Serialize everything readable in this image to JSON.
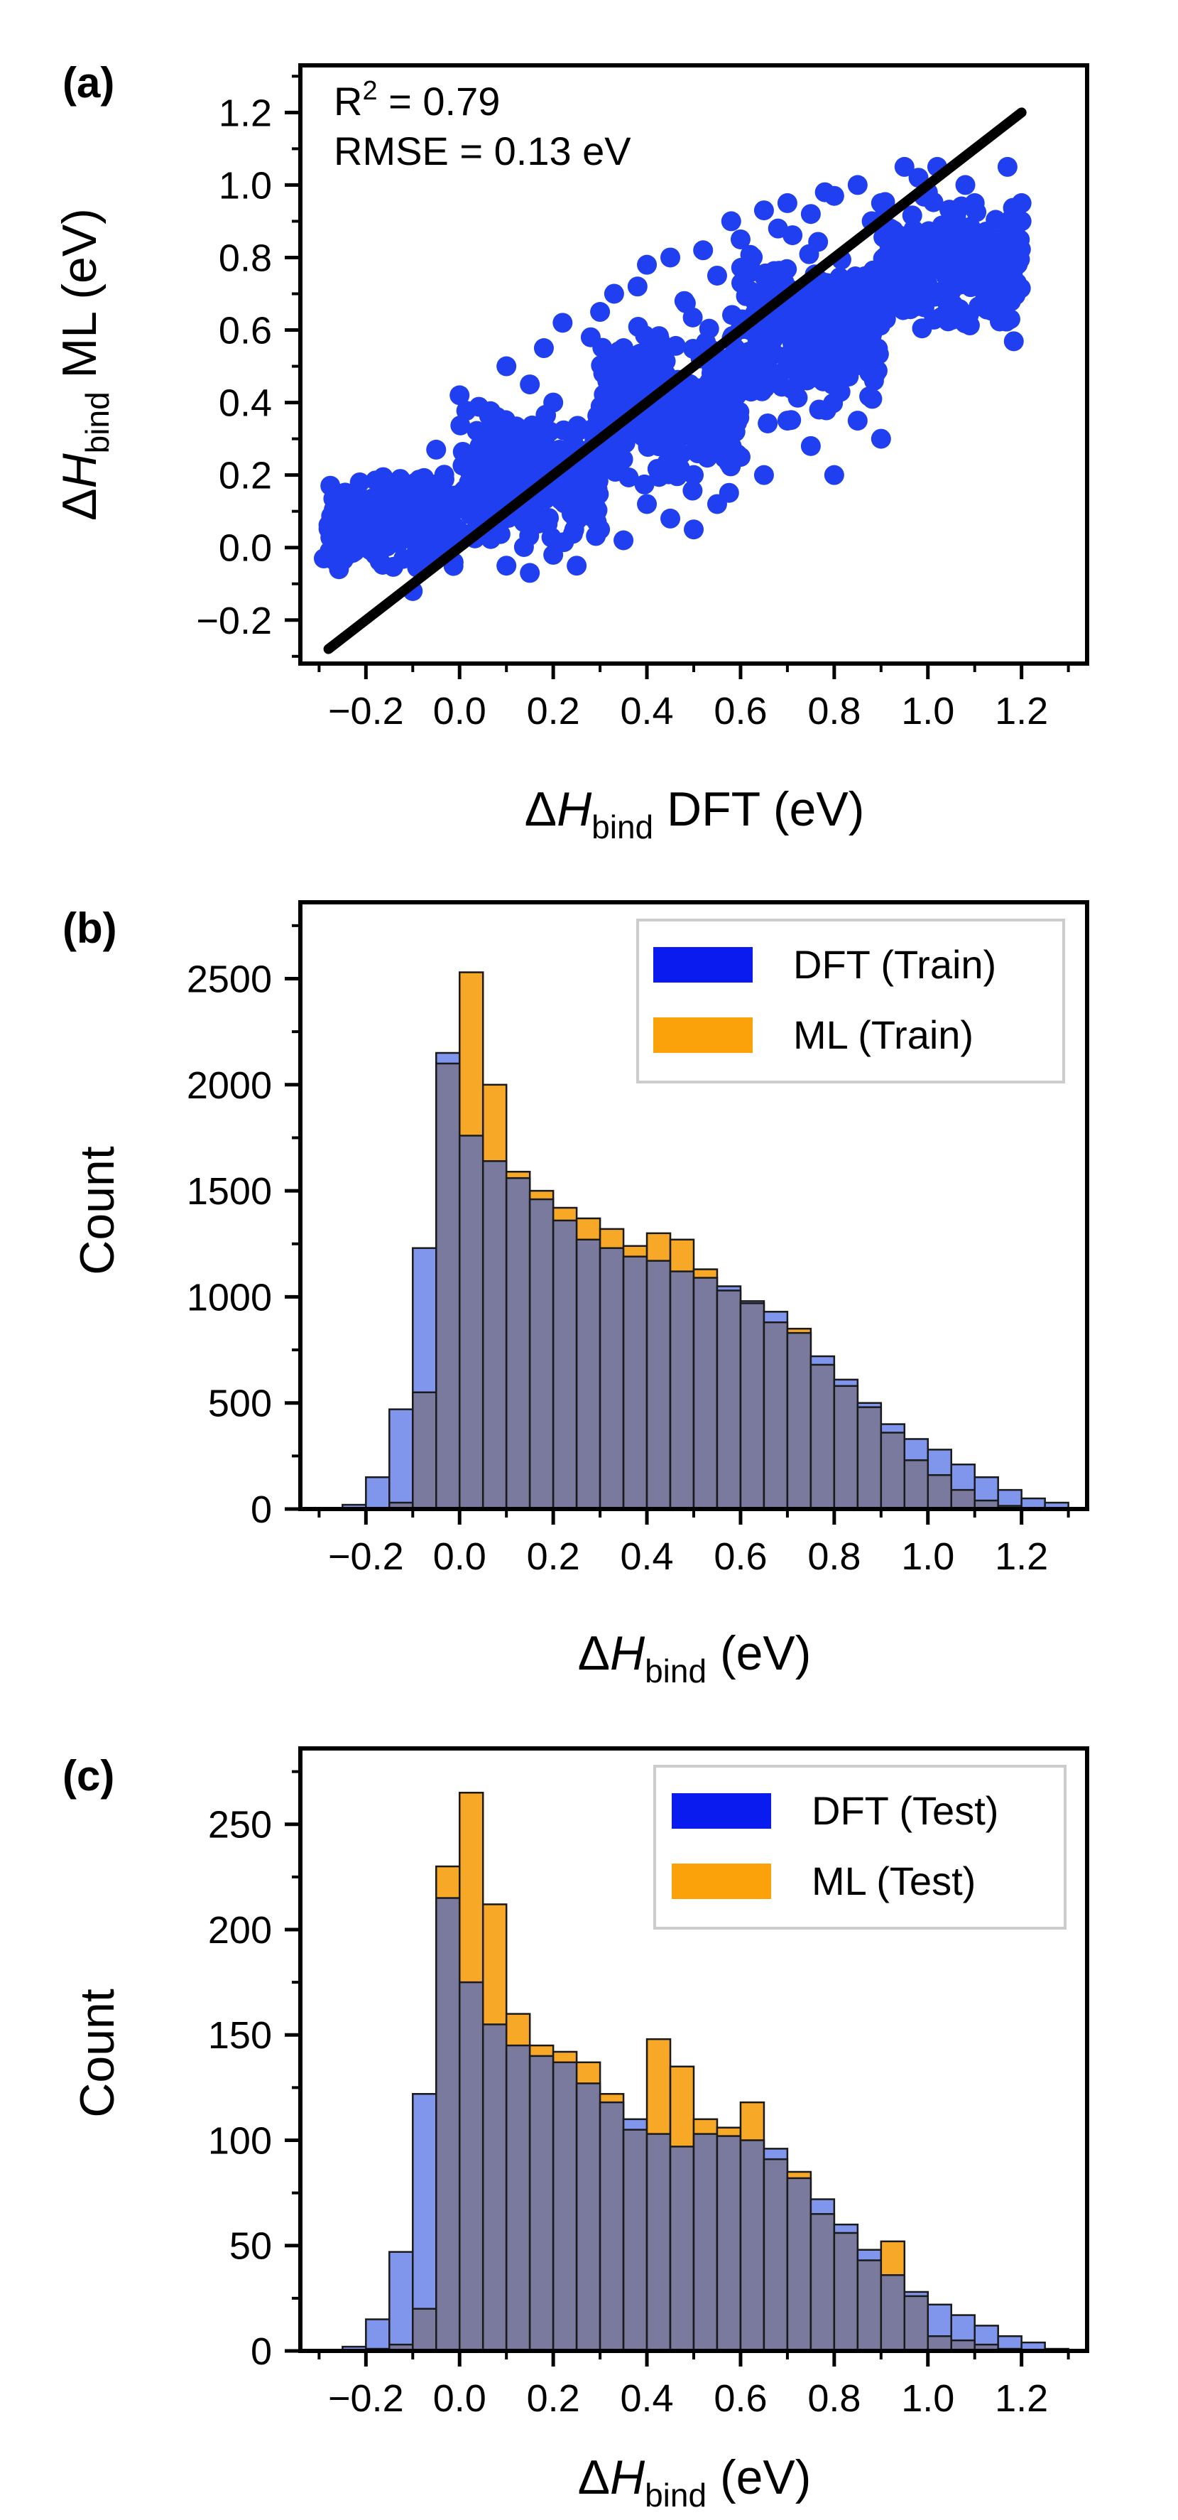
{
  "chart_data": [
    {
      "id": "a",
      "panel_label": "(a)",
      "type": "scatter",
      "xlabel": {
        "prefix": "Δ",
        "var": "H",
        "sub": "bind",
        "suffix": " DFT (eV)"
      },
      "ylabel": {
        "prefix": "Δ",
        "var": "H",
        "sub": "bind",
        "suffix": " ML (eV)"
      },
      "xlim": [
        -0.34,
        1.34
      ],
      "ylim": [
        -0.32,
        1.33
      ],
      "xticks": [
        -0.2,
        0.0,
        0.2,
        0.4,
        0.6,
        0.8,
        1.0,
        1.2
      ],
      "xtick_labels": [
        "−0.2",
        "0.0",
        "0.2",
        "0.4",
        "0.6",
        "0.8",
        "1.0",
        "1.2"
      ],
      "yticks": [
        -0.2,
        0.0,
        0.2,
        0.4,
        0.6,
        0.8,
        1.0,
        1.2
      ],
      "ytick_labels": [
        "−0.2",
        "0.0",
        "0.2",
        "0.4",
        "0.6",
        "0.8",
        "1.0",
        "1.2"
      ],
      "annotation": {
        "r2_base": "R",
        "r2_sup": "2",
        "r2_rest": " = 0.79",
        "rmse": "RMSE = 0.13 eV"
      },
      "point_color": "#1f3ff0",
      "parity_line": {
        "from": [
          -0.28,
          -0.28
        ],
        "to": [
          1.2,
          1.2
        ],
        "color": "#000000"
      },
      "points": [
        [
          -0.29,
          -0.03
        ],
        [
          -0.22,
          0.02
        ],
        [
          -0.2,
          0.05
        ],
        [
          -0.18,
          -0.02
        ],
        [
          -0.15,
          0.1
        ],
        [
          -0.12,
          0.08
        ],
        [
          -0.1,
          -0.12
        ],
        [
          -0.05,
          0.27
        ],
        [
          -0.05,
          0.05
        ],
        [
          0.0,
          0.42
        ],
        [
          0.02,
          0.18
        ],
        [
          0.05,
          0.3
        ],
        [
          0.08,
          0.36
        ],
        [
          0.1,
          0.5
        ],
        [
          0.15,
          0.45
        ],
        [
          0.18,
          0.55
        ],
        [
          0.2,
          0.4
        ],
        [
          0.22,
          0.62
        ],
        [
          0.25,
          0.12
        ],
        [
          0.28,
          0.58
        ],
        [
          0.3,
          0.65
        ],
        [
          0.33,
          0.7
        ],
        [
          0.35,
          0.55
        ],
        [
          0.38,
          0.72
        ],
        [
          0.4,
          0.78
        ],
        [
          0.42,
          0.5
        ],
        [
          0.45,
          0.8
        ],
        [
          0.48,
          0.68
        ],
        [
          0.5,
          0.05
        ],
        [
          0.52,
          0.82
        ],
        [
          0.55,
          0.75
        ],
        [
          0.58,
          0.9
        ],
        [
          0.6,
          0.85
        ],
        [
          0.62,
          0.78
        ],
        [
          0.65,
          0.93
        ],
        [
          0.68,
          0.88
        ],
        [
          0.7,
          0.95
        ],
        [
          0.72,
          0.6
        ],
        [
          0.75,
          0.92
        ],
        [
          0.78,
          0.98
        ],
        [
          0.8,
          0.97
        ],
        [
          0.82,
          0.7
        ],
        [
          0.85,
          1.0
        ],
        [
          0.88,
          0.9
        ],
        [
          0.9,
          0.95
        ],
        [
          0.92,
          0.88
        ],
        [
          0.95,
          1.05
        ],
        [
          0.98,
          1.02
        ],
        [
          1.0,
          0.98
        ],
        [
          1.02,
          1.05
        ],
        [
          1.05,
          0.92
        ],
        [
          1.08,
          1.0
        ],
        [
          1.1,
          0.95
        ],
        [
          1.12,
          0.85
        ],
        [
          1.15,
          0.8
        ],
        [
          1.17,
          1.05
        ],
        [
          1.19,
          0.73
        ],
        [
          1.2,
          0.9
        ],
        [
          1.2,
          0.95
        ],
        [
          0.9,
          0.3
        ],
        [
          0.85,
          0.35
        ],
        [
          0.8,
          0.2
        ],
        [
          0.75,
          0.28
        ],
        [
          0.7,
          0.35
        ],
        [
          0.65,
          0.2
        ],
        [
          0.6,
          0.25
        ],
        [
          0.55,
          0.12
        ],
        [
          0.5,
          0.2
        ],
        [
          0.45,
          0.08
        ],
        [
          0.4,
          0.12
        ],
        [
          0.35,
          0.02
        ],
        [
          0.3,
          0.05
        ],
        [
          0.25,
          -0.05
        ],
        [
          0.2,
          -0.02
        ],
        [
          0.15,
          -0.07
        ],
        [
          0.1,
          -0.05
        ]
      ],
      "cloud_bands": [
        {
          "x_min": -0.28,
          "x_max": 0.0,
          "y_low": -0.08,
          "y_high": 0.22
        },
        {
          "x_min": 0.0,
          "x_max": 0.3,
          "y_low": -0.05,
          "y_high": 0.42
        },
        {
          "x_min": 0.3,
          "x_max": 0.6,
          "y_low": 0.1,
          "y_high": 0.7
        },
        {
          "x_min": 0.6,
          "x_max": 0.9,
          "y_low": 0.3,
          "y_high": 0.9
        },
        {
          "x_min": 0.9,
          "x_max": 1.2,
          "y_low": 0.55,
          "y_high": 1.0
        }
      ]
    },
    {
      "id": "b",
      "panel_label": "(b)",
      "type": "histogram",
      "xlabel": {
        "prefix": "Δ",
        "var": "H",
        "sub": "bind",
        "suffix": " (eV)"
      },
      "ylabel": "Count",
      "xlim": [
        -0.34,
        1.34
      ],
      "ylim": [
        0,
        2860
      ],
      "xticks": [
        -0.2,
        0.0,
        0.2,
        0.4,
        0.6,
        0.8,
        1.0,
        1.2
      ],
      "xtick_labels": [
        "−0.2",
        "0.0",
        "0.2",
        "0.4",
        "0.6",
        "0.8",
        "1.0",
        "1.2"
      ],
      "yticks": [
        0,
        500,
        1000,
        1500,
        2000,
        2500
      ],
      "ytick_labels": [
        "0",
        "500",
        "1000",
        "1500",
        "2000",
        "2500"
      ],
      "bin_start": -0.3,
      "bin_width": 0.05,
      "series": [
        {
          "name": "DFT (Train)",
          "color": "#0a1bf0",
          "fill": "#7f96ec",
          "values": [
            0,
            20,
            150,
            470,
            1230,
            2150,
            1760,
            1640,
            1560,
            1460,
            1360,
            1270,
            1230,
            1190,
            1170,
            1120,
            1090,
            1050,
            980,
            930,
            830,
            720,
            610,
            500,
            400,
            330,
            280,
            210,
            150,
            90,
            50,
            30
          ]
        },
        {
          "name": "ML (Train)",
          "color": "#fba10a",
          "fill": "#f8a827",
          "values": [
            0,
            0,
            5,
            30,
            550,
            2100,
            2530,
            2000,
            1590,
            1500,
            1420,
            1370,
            1320,
            1240,
            1300,
            1270,
            1130,
            1030,
            970,
            880,
            850,
            680,
            580,
            480,
            360,
            230,
            160,
            90,
            40,
            15,
            5,
            0
          ]
        }
      ],
      "legend_position": "top-right"
    },
    {
      "id": "c",
      "panel_label": "(c)",
      "type": "histogram",
      "xlabel": {
        "prefix": "Δ",
        "var": "H",
        "sub": "bind",
        "suffix": " (eV)"
      },
      "ylabel": "Count",
      "xlim": [
        -0.34,
        1.34
      ],
      "ylim": [
        0,
        286
      ],
      "xticks": [
        -0.2,
        0.0,
        0.2,
        0.4,
        0.6,
        0.8,
        1.0,
        1.2
      ],
      "xtick_labels": [
        "−0.2",
        "0.0",
        "0.2",
        "0.4",
        "0.6",
        "0.8",
        "1.0",
        "1.2"
      ],
      "yticks": [
        0,
        50,
        100,
        150,
        200,
        250
      ],
      "ytick_labels": [
        "0",
        "50",
        "100",
        "150",
        "200",
        "250"
      ],
      "bin_start": -0.3,
      "bin_width": 0.05,
      "series": [
        {
          "name": "DFT (Test)",
          "color": "#0a1bf0",
          "fill": "#7f96ec",
          "values": [
            0,
            2,
            15,
            47,
            122,
            215,
            175,
            155,
            145,
            140,
            137,
            127,
            118,
            110,
            103,
            97,
            103,
            102,
            100,
            96,
            82,
            72,
            60,
            48,
            36,
            28,
            22,
            17,
            12,
            7,
            4,
            1
          ]
        },
        {
          "name": "ML (Test)",
          "color": "#fba10a",
          "fill": "#f8a827",
          "values": [
            0,
            0,
            1,
            3,
            20,
            230,
            265,
            212,
            160,
            145,
            142,
            137,
            122,
            105,
            148,
            135,
            110,
            106,
            118,
            91,
            85,
            65,
            56,
            43,
            52,
            26,
            7,
            5,
            3,
            1,
            0,
            0
          ]
        }
      ],
      "legend_position": "top-right"
    }
  ]
}
